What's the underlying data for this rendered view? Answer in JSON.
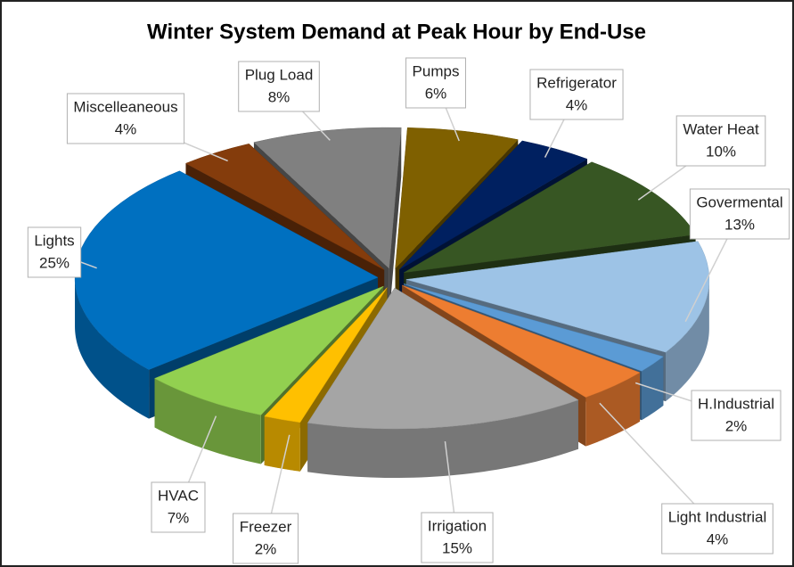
{
  "chart_data": {
    "type": "pie",
    "title": "Winter System Demand at Peak Hour by End-Use",
    "categories": [
      "Pumps",
      "Refrigerator",
      "Water Heat",
      "Govermental",
      "H.Industrial",
      "Light Industrial",
      "Irrigation",
      "Freezer",
      "HVAC",
      "Lights",
      "Miscelleaneous",
      "Plug Load"
    ],
    "values": [
      6,
      4,
      10,
      13,
      2,
      4,
      15,
      2,
      7,
      25,
      4,
      8
    ],
    "value_labels": [
      "6%",
      "4%",
      "10%",
      "13%",
      "2%",
      "4%",
      "15%",
      "2%",
      "7%",
      "25%",
      "4%",
      "8%"
    ],
    "colors": [
      "#7f6000",
      "#002060",
      "#375623",
      "#9dc3e6",
      "#5b9bd5",
      "#ed7d31",
      "#a5a5a5",
      "#ffc000",
      "#92d050",
      "#0070c0",
      "#843c0c",
      "#808080"
    ]
  }
}
